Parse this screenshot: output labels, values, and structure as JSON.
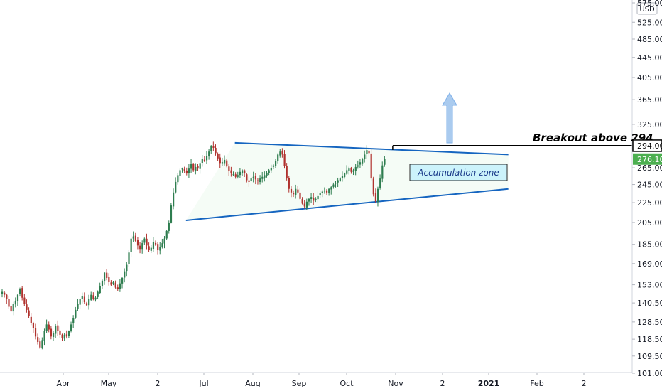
{
  "chart_data": {
    "type": "candlestick",
    "currency": "USD",
    "scale": "log",
    "y_ticks": [
      "575.00",
      "525.00",
      "485.00",
      "445.00",
      "405.00",
      "365.00",
      "325.00",
      "265.00",
      "245.00",
      "225.00",
      "205.00",
      "185.00",
      "169.00",
      "153.00",
      "140.50",
      "128.50",
      "118.50",
      "109.50",
      "101.00"
    ],
    "y_tick_values": [
      575,
      525,
      485,
      445,
      405,
      365,
      325,
      265,
      245,
      225,
      205,
      185,
      169,
      153,
      140.5,
      128.5,
      118.5,
      109.5,
      101
    ],
    "x_ticks": [
      {
        "label": "Apr",
        "bold": false
      },
      {
        "label": "May",
        "bold": false
      },
      {
        "label": "2",
        "bold": false
      },
      {
        "label": "Jul",
        "bold": false
      },
      {
        "label": "Aug",
        "bold": false
      },
      {
        "label": "Sep",
        "bold": false
      },
      {
        "label": "Oct",
        "bold": false
      },
      {
        "label": "Nov",
        "bold": false
      },
      {
        "label": "2",
        "bold": false
      },
      {
        "label": "2021",
        "bold": true
      },
      {
        "label": "Feb",
        "bold": false
      },
      {
        "label": "2",
        "bold": false
      }
    ],
    "price_tags": [
      {
        "label": "294.00",
        "value": 294,
        "style": "outline"
      },
      {
        "label": "276.10",
        "value": 276.1,
        "style": "green"
      }
    ],
    "closes": [
      148,
      146,
      143,
      138,
      135,
      140,
      142,
      146,
      150,
      144,
      140,
      136,
      132,
      128,
      125,
      120,
      117,
      114,
      118,
      123,
      127,
      124,
      120,
      122,
      126,
      123,
      121,
      119,
      121,
      120,
      123,
      127,
      131,
      136,
      140,
      143,
      145,
      141,
      139,
      143,
      146,
      143,
      144,
      148,
      152,
      156,
      162,
      158,
      155,
      153,
      155,
      151,
      150,
      154,
      158,
      163,
      168,
      178,
      190,
      192,
      188,
      184,
      181,
      186,
      190,
      184,
      180,
      182,
      187,
      185,
      180,
      183,
      186,
      190,
      197,
      205,
      222,
      236,
      248,
      256,
      262,
      264,
      261,
      258,
      264,
      270,
      262,
      266,
      264,
      271,
      276,
      274,
      280,
      286,
      293,
      291,
      284,
      277,
      271,
      272,
      275,
      267,
      261,
      258,
      257,
      254,
      256,
      260,
      262,
      258,
      250,
      248,
      252,
      254,
      251,
      249,
      252,
      254,
      256,
      259,
      262,
      265,
      268,
      274,
      282,
      286,
      282,
      267,
      252,
      240,
      236,
      234,
      240,
      236,
      229,
      224,
      221,
      226,
      229,
      231,
      227,
      229,
      232,
      235,
      237,
      238,
      236,
      240,
      242,
      245,
      247,
      250,
      252,
      255,
      258,
      262,
      264,
      260,
      262,
      266,
      268,
      272,
      276,
      282,
      288,
      284,
      252,
      234,
      226,
      240,
      252,
      268,
      276.1
    ],
    "trendlines": [
      {
        "name": "upper",
        "from": {
          "bar": 105,
          "price": 298
        },
        "to": {
          "bar": 228,
          "price": 282
        }
      },
      {
        "name": "lower",
        "from": {
          "bar": 83,
          "price": 207
        },
        "to": {
          "bar": 228,
          "price": 240
        }
      },
      {
        "name": "breakout",
        "from": {
          "bar": 176,
          "price": 294
        },
        "to": {
          "bar": 260,
          "price": 294
        }
      }
    ]
  },
  "annotations": {
    "breakout": "Breakout above 294",
    "zone": "Accumulation zone"
  },
  "colors": {
    "up": "#26a69a",
    "down": "#ef5350",
    "up_dark": "#2e7d4f",
    "down_dark": "#b0322e",
    "trendline": "#1565c0",
    "green_tag": "#4caf50",
    "zone_fill": "#ccf3fb",
    "arrow": "#aacbef"
  },
  "icons": {
    "arrow": "up-arrow-icon"
  }
}
